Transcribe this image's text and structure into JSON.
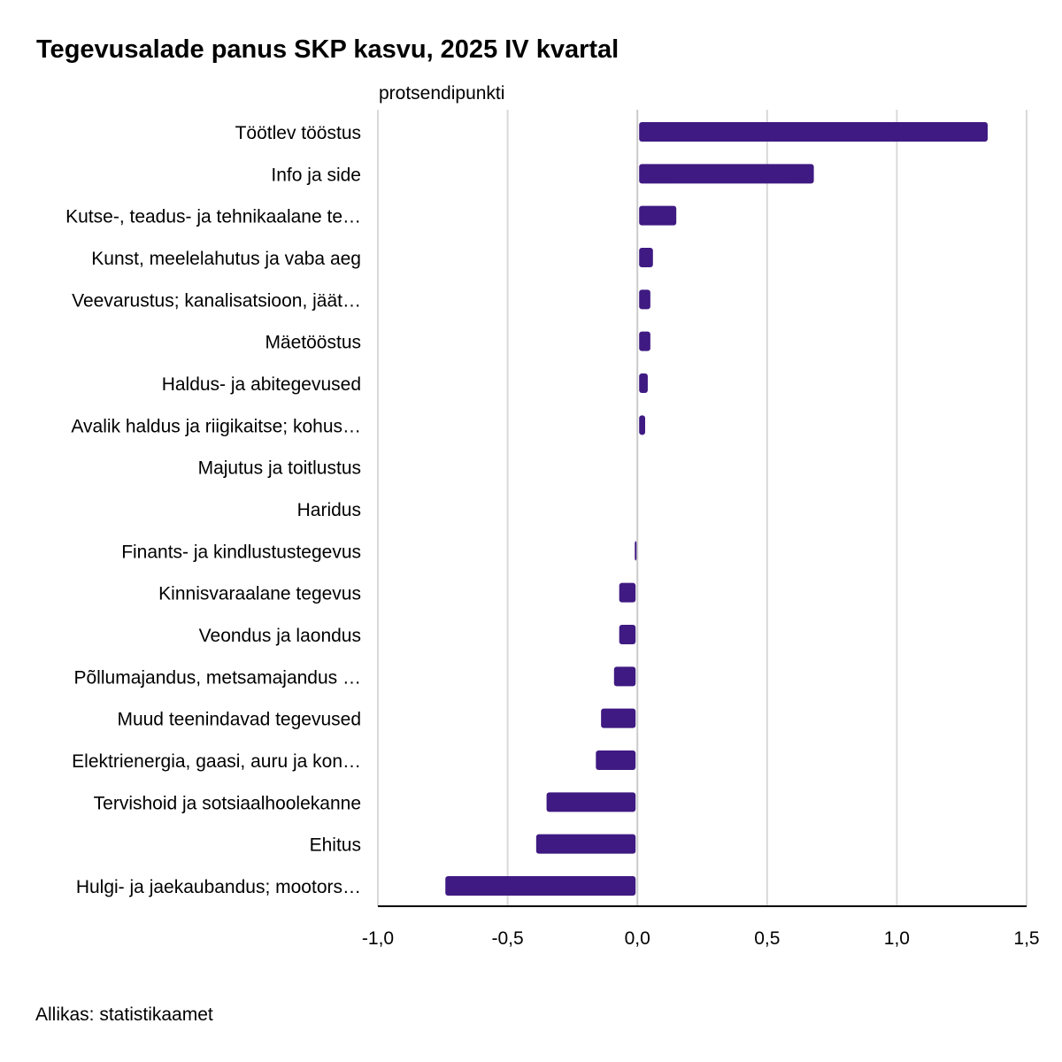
{
  "chart_data": {
    "type": "bar",
    "orientation": "horizontal",
    "title": "Tegevusalade panus SKP kasvu, 2025 IV kvartal",
    "unit_label": "protsendipunkti",
    "source": "Allikas: statistikaamet",
    "categories": [
      "Töötlev tööstus",
      "Info ja side",
      "Kutse-, teadus- ja tehnikaalane te…",
      "Kunst, meelelahutus ja vaba aeg",
      "Veevarustus; kanalisatsioon, jäät…",
      "Mäetööstus",
      "Haldus- ja abitegevused",
      "Avalik haldus ja riigikaitse; kohus…",
      "Majutus ja toitlustus",
      "Haridus",
      "Finants- ja kindlustustegevus",
      "Kinnisvaraalane tegevus",
      "Veondus ja laondus",
      "Põllumajandus, metsamajandus …",
      "Muud teenindavad tegevused",
      "Elektrienergia, gaasi, auru ja kon…",
      "Tervishoid ja sotsiaalhoolekanne",
      "Ehitus",
      "Hulgi- ja jaekaubandus; mootors…"
    ],
    "values": [
      1.35,
      0.68,
      0.15,
      0.06,
      0.05,
      0.05,
      0.04,
      0.03,
      0,
      0,
      -0.01,
      -0.07,
      -0.07,
      -0.09,
      -0.14,
      -0.16,
      -0.35,
      -0.39,
      -0.74
    ],
    "xlim": [
      -1.0,
      1.5
    ],
    "xticks": [
      "-1,0",
      "-0,5",
      "0,0",
      "0,5",
      "1,0",
      "1,5"
    ],
    "xtick_values": [
      -1.0,
      -0.5,
      0,
      0.5,
      1.0,
      1.5
    ],
    "grid": true,
    "bar_color": "#3f1a82",
    "grid_color": "#d9d9d9"
  }
}
